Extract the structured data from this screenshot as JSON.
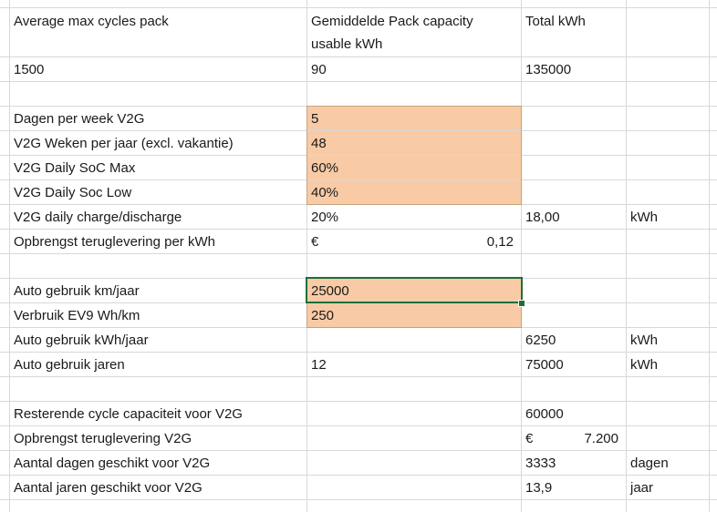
{
  "header": {
    "a": "Average max cycles pack",
    "b_line1": "Gemiddelde Pack capacity",
    "b_line2": "usable kWh",
    "c": "Total kWh"
  },
  "row_values": {
    "a": "1500",
    "b": "90",
    "c": "135000"
  },
  "v2g": {
    "dagen_label": "Dagen per week V2G",
    "dagen_value": "5",
    "weken_label": "V2G Weken per jaar (excl. vakantie)",
    "weken_value": "48",
    "soc_max_label": "V2G Daily SoC Max",
    "soc_max_value": "60%",
    "soc_low_label": "V2G Daily Soc Low",
    "soc_low_value": "40%",
    "charge_label": "V2G daily charge/discharge",
    "charge_pct": "20%",
    "charge_kwh": "18,00",
    "charge_unit": "kWh",
    "opbrengst_label": "Opbrengst teruglevering per kWh",
    "opbrengst_currency": "€",
    "opbrengst_value": "0,12"
  },
  "auto": {
    "km_label": "Auto gebruik km/jaar",
    "km_value": "25000",
    "verbruik_label": "Verbruik EV9 Wh/km",
    "verbruik_value": "250",
    "kwh_label": "Auto gebruik kWh/jaar",
    "kwh_value": "6250",
    "kwh_unit": "kWh",
    "jaren_label": "Auto gebruik jaren",
    "jaren_value": "12",
    "jaren_total": "75000",
    "jaren_unit": "kWh"
  },
  "result": {
    "rest_label": "Resterende cycle capaciteit voor V2G",
    "rest_value": "60000",
    "opbrengst_label": "Opbrengst teruglevering V2G",
    "opbrengst_currency": "€",
    "opbrengst_value": "7.200",
    "dagen_label": "Aantal dagen geschikt voor V2G",
    "dagen_value": "3333",
    "dagen_unit": "dagen",
    "jaren_label": "Aantal jaren geschikt voor V2G",
    "jaren_value": "13,9",
    "jaren_unit": "jaar"
  },
  "colors": {
    "input_fill": "#f8cba6",
    "selection": "#1e6e3a",
    "gridline": "#d8d8d8"
  }
}
